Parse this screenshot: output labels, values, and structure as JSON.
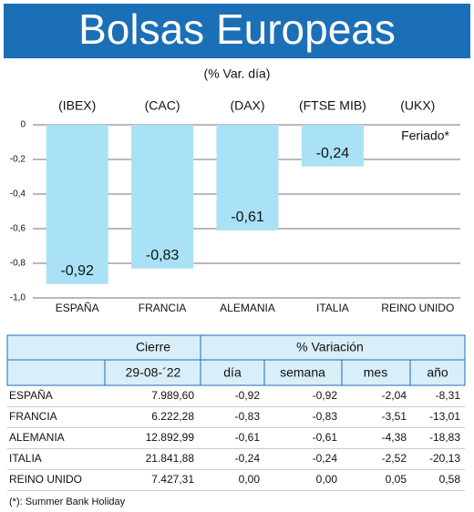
{
  "chart_data": {
    "type": "bar",
    "title": "Bolsas Europeas",
    "subtitle": "(% Var. día)",
    "index_labels": [
      "(IBEX)",
      "(CAC)",
      "(DAX)",
      "(FTSE MIB)",
      "(UKX)"
    ],
    "categories": [
      "ESPAÑA",
      "FRANCIA",
      "ALEMANIA",
      "ITALIA",
      "REINO UNIDO"
    ],
    "values": [
      -0.92,
      -0.83,
      -0.61,
      -0.24,
      null
    ],
    "value_labels": [
      "-0,92",
      "-0,83",
      "-0,61",
      "-0,24",
      null
    ],
    "annotation": "Feriado*",
    "color": "#a9e1f6",
    "ylim": [
      -1,
      0
    ],
    "yticks": [
      0,
      {
        "value": -0.2,
        "label": "-0,2"
      },
      {
        "value": -0.4,
        "label": "-0,4"
      },
      {
        "value": -0.6,
        "label": "-0,6"
      },
      {
        "value": -0.8,
        "label": "-0,8"
      },
      {
        "value": -1,
        "label": "-1,0"
      }
    ],
    "grid": true
  },
  "table": {
    "header_groups": [
      "Cierre",
      "% Variación"
    ],
    "columns": [
      "29-08-´22",
      "día",
      "semana",
      "mes",
      "año"
    ],
    "rows": [
      [
        "ESPAÑA",
        "7.989,60",
        "-0,92",
        "-0,92",
        "-2,04",
        "-8,31"
      ],
      [
        "FRANCIA",
        "6.222,28",
        "-0,83",
        "-0,83",
        "-3,51",
        "-13,01"
      ],
      [
        "ALEMANIA",
        "12.892,99",
        "-0,61",
        "-0,61",
        "-4,38",
        "-18,83"
      ],
      [
        "ITALIA",
        "21.841,88",
        "-0,24",
        "-0,24",
        "-2,52",
        "-20,13"
      ],
      [
        "REINO UNIDO",
        "7.427,31",
        "0,00",
        "0,00",
        "0,05",
        "0,58"
      ]
    ]
  },
  "footnote": "(*): Summer Bank Holiday"
}
